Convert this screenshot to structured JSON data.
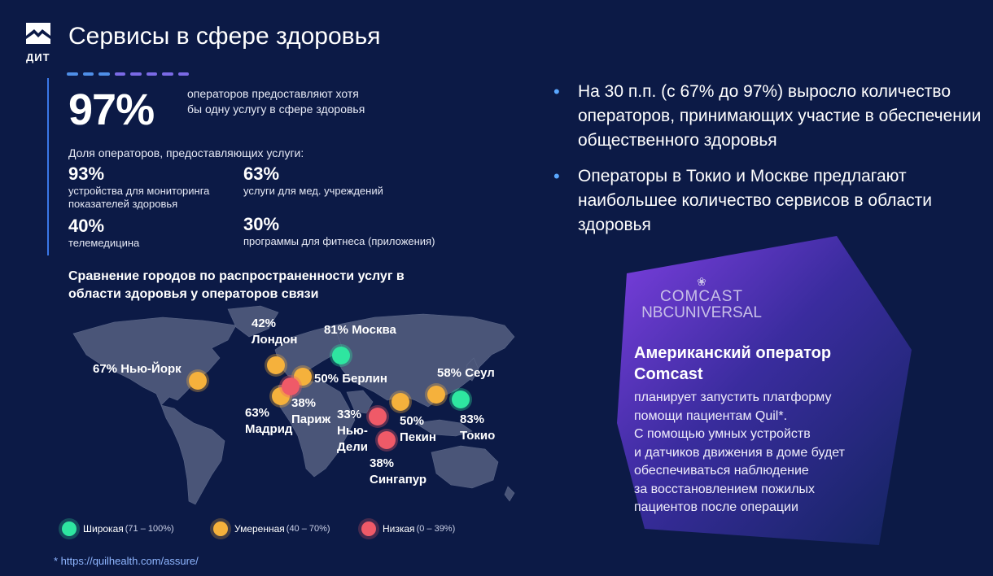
{
  "brand": {
    "logo_text": "ДИТ"
  },
  "page": {
    "title": "Сервисы в сфере здоровья"
  },
  "headline": {
    "value": "97%",
    "description": "операторов предоставляют хотя бы одну услугу в сфере здоровья"
  },
  "shares": {
    "title": "Доля операторов, предоставляющих услуги:",
    "items": [
      {
        "value": "93%",
        "label": "устройства для мониторинга показателей здоровья"
      },
      {
        "value": "63%",
        "label": "услуги для мед. учреждений"
      },
      {
        "value": "40%",
        "label": "телемедицина"
      },
      {
        "value": "30%",
        "label": "программы для фитнеса (приложения)"
      }
    ]
  },
  "map": {
    "title": "Сравнение городов по распространенности услуг в области здоровья у операторов связи",
    "cities": [
      {
        "id": "moscow",
        "label": "81% Москва",
        "level": "wide"
      },
      {
        "id": "london",
        "label": "42% Лондон",
        "level": "moderate"
      },
      {
        "id": "new-york",
        "label": "67% Нью-Йорк",
        "level": "moderate"
      },
      {
        "id": "berlin",
        "label": "50% Берлин",
        "level": "moderate"
      },
      {
        "id": "madrid",
        "label": "63% Мадрид",
        "level": "moderate"
      },
      {
        "id": "paris",
        "label": "38% Париж",
        "level": "low"
      },
      {
        "id": "new-delhi",
        "label": "33% Нью-Дели",
        "level": "low"
      },
      {
        "id": "beijing",
        "label": "50% Пекин",
        "level": "moderate"
      },
      {
        "id": "seoul",
        "label": "58% Сеул",
        "level": "moderate"
      },
      {
        "id": "tokyo",
        "label": "83% Токио",
        "level": "wide"
      },
      {
        "id": "singapore",
        "label": "38% Сингапур",
        "level": "low"
      }
    ],
    "legend": [
      {
        "name": "Широкая",
        "range": "(71 – 100%)",
        "color": "#2ee6a0"
      },
      {
        "name": "Умеренная",
        "range": "(40 – 70%)",
        "color": "#f5b13c"
      },
      {
        "name": "Низкая",
        "range": "(0 – 39%)",
        "color": "#ef5a68"
      }
    ]
  },
  "footnote": "* https://quilhealth.com/assure/",
  "bullets": [
    "На 30 п.п. (с 67% до 97%) выросло количество операторов, принимающих участие в обеспечении общественного здоровья",
    "Операторы в Токио и Москве предлагают наибольшее количество сервисов в области здоровья"
  ],
  "card": {
    "logo_line1": "COMCAST",
    "logo_line2": "NBCUNIVERSAL",
    "heading": "Американский оператор Comcast",
    "body_lines": [
      "планирует запустить платформу",
      "помощи пациентам Quil*.",
      "С помощью умных устройств",
      "и датчиков движения в доме будет",
      "обеспечиваться наблюдение",
      "за восстановлением пожилых",
      "пациентов после операции"
    ]
  },
  "colors": {
    "background": "#0c1a46",
    "wide": "#2ee6a0",
    "moderate": "#f5b13c",
    "low": "#ef5a68",
    "accent": "#5aa7ff"
  }
}
